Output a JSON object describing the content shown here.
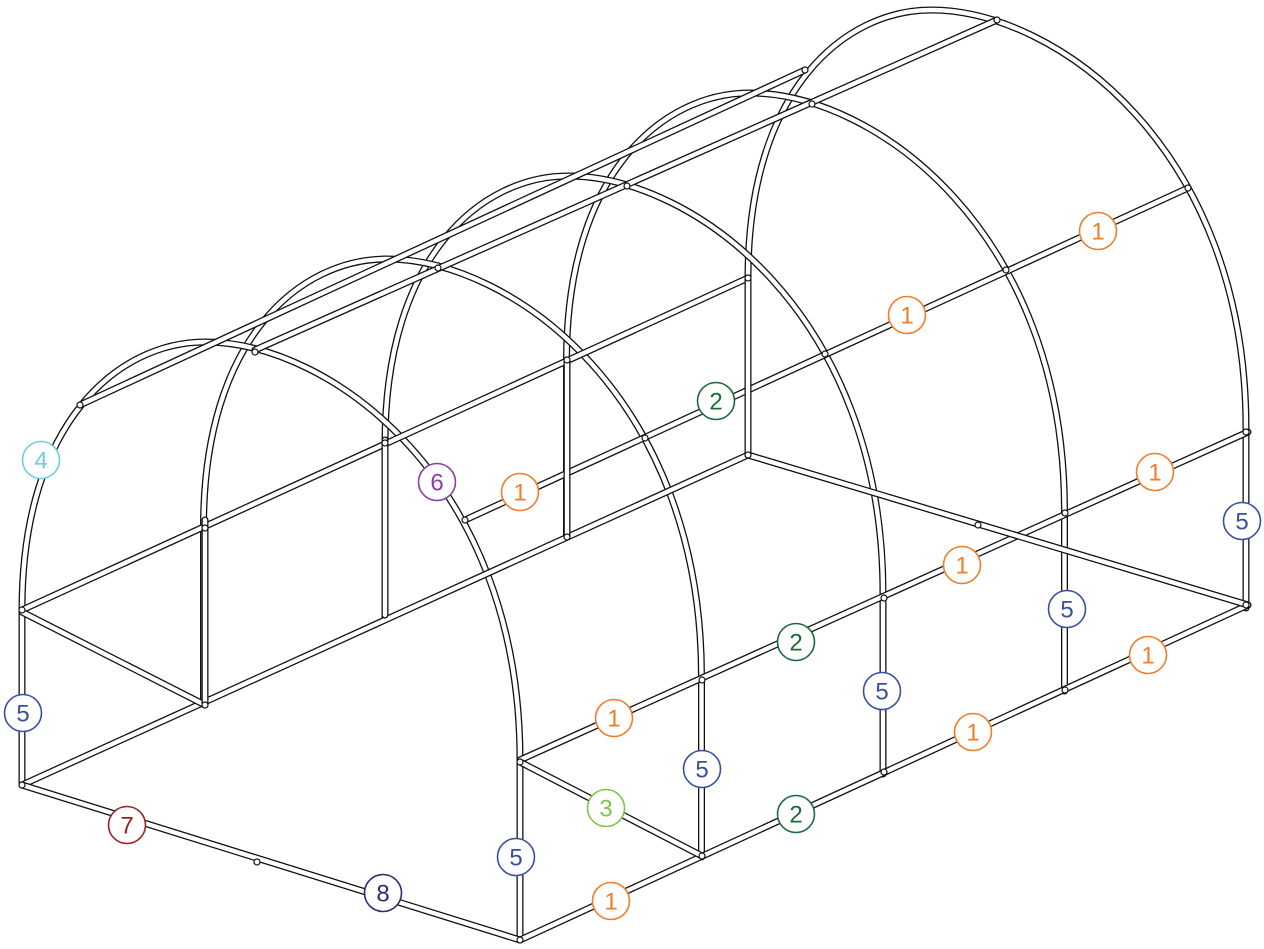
{
  "callouts": [
    {
      "label": "1",
      "color": "#f07d28"
    },
    {
      "label": "1",
      "color": "#f07d28"
    },
    {
      "label": "1",
      "color": "#f07d28"
    },
    {
      "label": "1",
      "color": "#f07d28"
    },
    {
      "label": "1",
      "color": "#f07d28"
    },
    {
      "label": "1",
      "color": "#f07d28"
    },
    {
      "label": "1",
      "color": "#f07d28"
    },
    {
      "label": "1",
      "color": "#f07d28"
    },
    {
      "label": "1",
      "color": "#f07d28"
    },
    {
      "label": "2",
      "color": "#1a6b3c"
    },
    {
      "label": "2",
      "color": "#1a6b3c"
    },
    {
      "label": "2",
      "color": "#1a6b3c"
    },
    {
      "label": "3",
      "color": "#7dc64b"
    },
    {
      "label": "4",
      "color": "#6fcfdc"
    },
    {
      "label": "5",
      "color": "#3a4fa0"
    },
    {
      "label": "5",
      "color": "#3a4fa0"
    },
    {
      "label": "5",
      "color": "#3a4fa0"
    },
    {
      "label": "5",
      "color": "#3a4fa0"
    },
    {
      "label": "5",
      "color": "#3a4fa0"
    },
    {
      "label": "5",
      "color": "#3a4fa0"
    },
    {
      "label": "6",
      "color": "#8b3fa0"
    },
    {
      "label": "7",
      "color": "#a01e28"
    },
    {
      "label": "8",
      "color": "#2e2a7a"
    }
  ]
}
